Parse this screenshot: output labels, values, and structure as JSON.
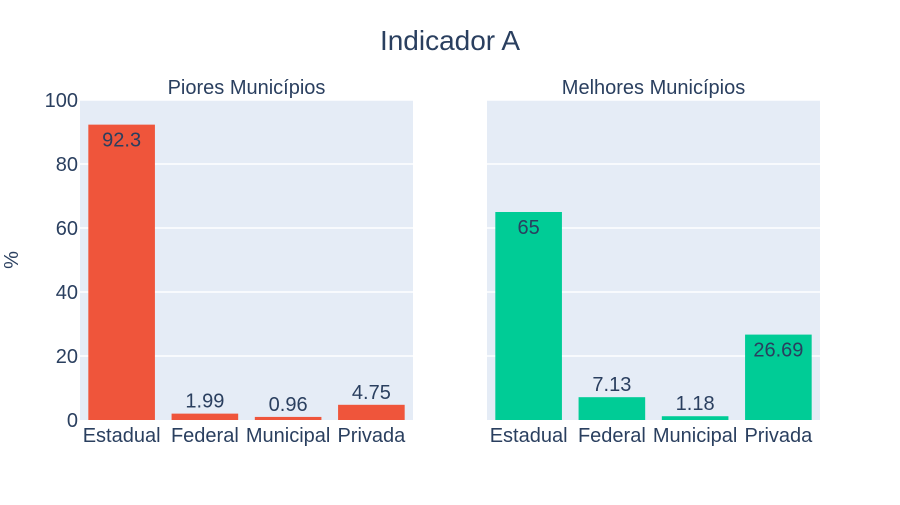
{
  "title": "Indicador A",
  "y_axis_label": "%",
  "chart_data": [
    {
      "type": "bar",
      "title": "Piores Municípios",
      "categories": [
        "Estadual",
        "Federal",
        "Municipal",
        "Privada"
      ],
      "values": [
        92.3,
        1.99,
        0.96,
        4.75
      ],
      "value_labels": [
        "92.3",
        "1.99",
        "0.96",
        "4.75"
      ],
      "color": "#ef553b",
      "ylim": [
        0,
        100
      ],
      "yticks": [
        0,
        20,
        40,
        60,
        80,
        100
      ],
      "ylabel": "%",
      "grid": true
    },
    {
      "type": "bar",
      "title": "Melhores Municípios",
      "categories": [
        "Estadual",
        "Federal",
        "Municipal",
        "Privada"
      ],
      "values": [
        65,
        7.13,
        1.18,
        26.69
      ],
      "value_labels": [
        "65",
        "7.13",
        "1.18",
        "26.69"
      ],
      "color": "#00cc96",
      "ylim": [
        0,
        100
      ],
      "grid": true
    }
  ],
  "colors": {
    "background": "#ffffff",
    "plot_bg": "#e5ecf6",
    "grid": "#ffffff",
    "text": "#2a3f5f"
  }
}
